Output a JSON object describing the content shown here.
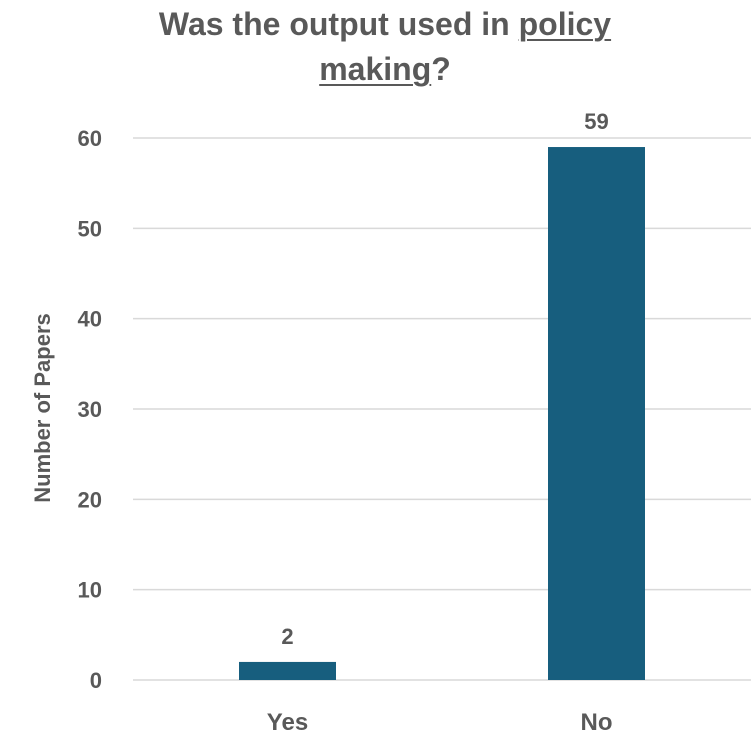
{
  "chart_data": {
    "type": "bar",
    "title_parts": [
      {
        "text": "Was the output used in ",
        "underline": false
      },
      {
        "text": "policy",
        "underline": true
      },
      {
        "text": " ",
        "underline": false
      },
      {
        "text": "making",
        "underline": true
      },
      {
        "text": "?",
        "underline": false
      }
    ],
    "categories": [
      "Yes",
      "No"
    ],
    "values": [
      2,
      59
    ],
    "data_labels": [
      "2",
      "59"
    ],
    "xlabel": "",
    "ylabel": "Number of Papers",
    "ylim": [
      0,
      60
    ],
    "yticks": [
      0,
      10,
      20,
      30,
      40,
      50,
      60
    ],
    "grid": true,
    "legend": "none",
    "colors": {
      "bar": "#175e7e",
      "grid": "#d9d9d9",
      "text": "#595959"
    }
  }
}
